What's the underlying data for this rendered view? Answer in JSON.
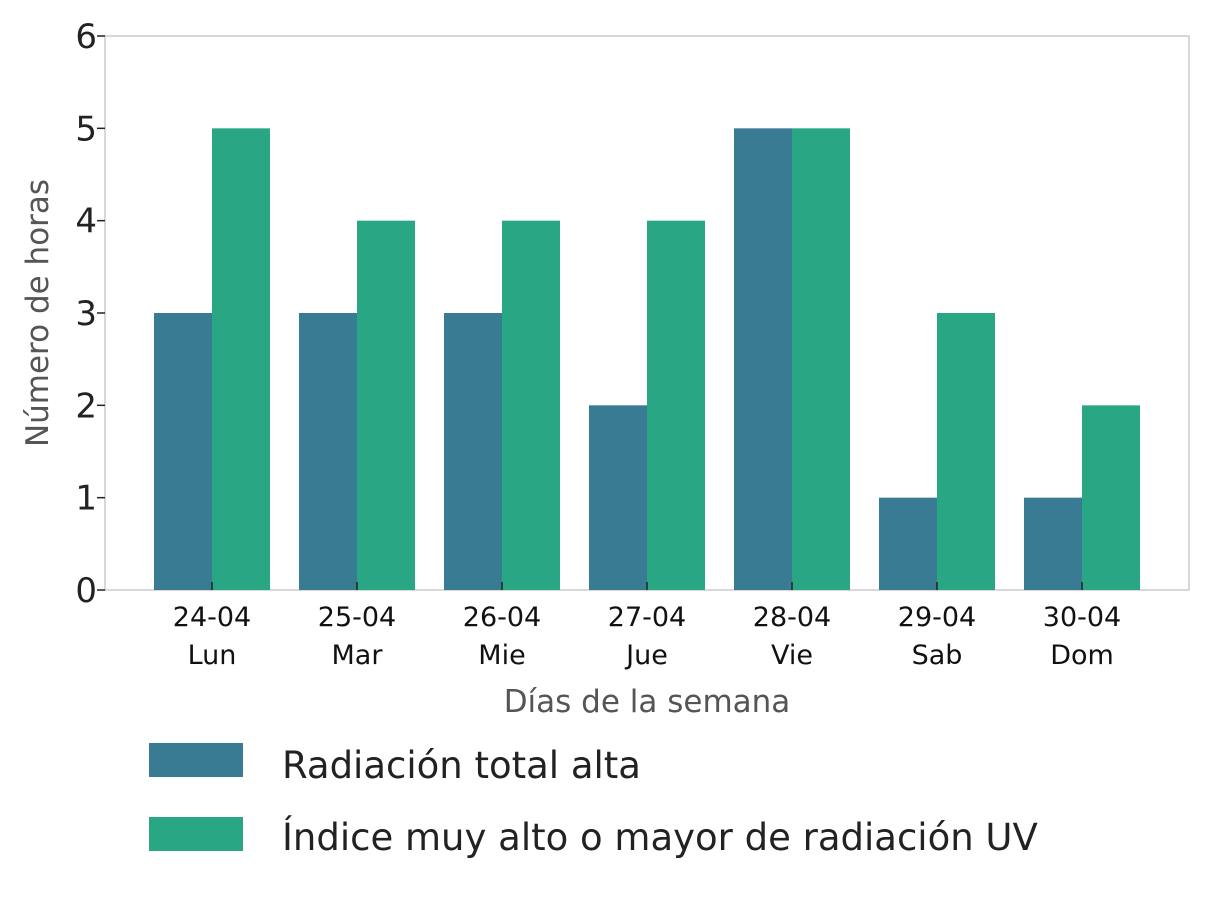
{
  "chart_data": {
    "type": "bar",
    "categories": [
      [
        "24-04",
        "Lun"
      ],
      [
        "25-04",
        "Mar"
      ],
      [
        "26-04",
        "Mie"
      ],
      [
        "27-04",
        "Jue"
      ],
      [
        "28-04",
        "Vie"
      ],
      [
        "29-04",
        "Sab"
      ],
      [
        "30-04",
        "Dom"
      ]
    ],
    "series": [
      {
        "name": "Radiación total alta",
        "color": "#387b93",
        "values": [
          3,
          3,
          3,
          2,
          5,
          1,
          1
        ]
      },
      {
        "name": "Índice muy alto o mayor de radiación UV",
        "color": "#29a684",
        "values": [
          5,
          4,
          4,
          4,
          5,
          3,
          2
        ]
      }
    ],
    "xlabel": "Días de la semana",
    "ylabel": "Número de horas",
    "ylim": [
      0,
      6
    ],
    "yticks": [
      0,
      1,
      2,
      3,
      4,
      5,
      6
    ],
    "grid": false,
    "legend_position": "bottom"
  }
}
